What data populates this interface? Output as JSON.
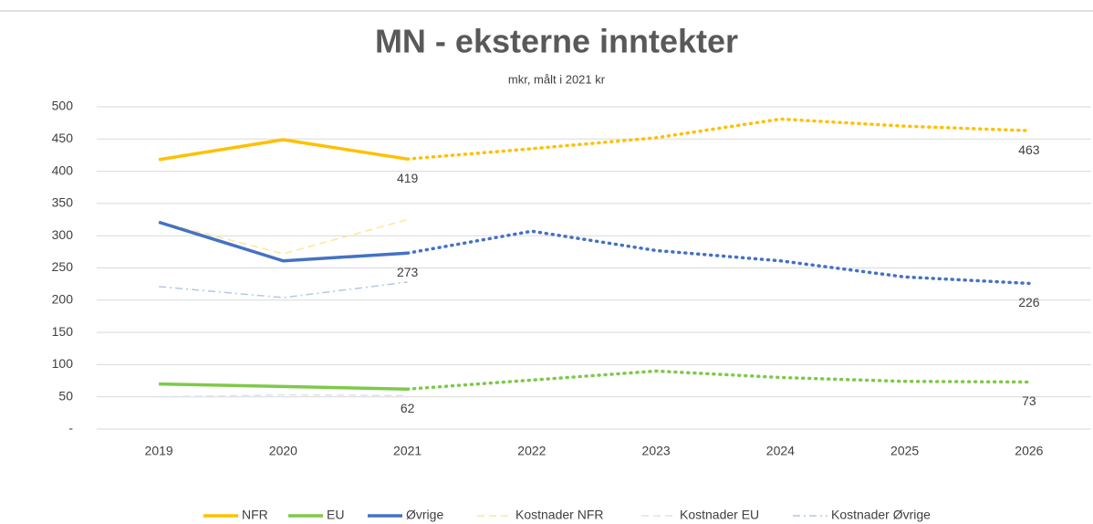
{
  "chart_data": {
    "type": "line",
    "title": "MN - eksterne inntekter",
    "subtitle": "mkr, målt i 2021 kr",
    "categories": [
      "2019",
      "2020",
      "2021",
      "2022",
      "2023",
      "2024",
      "2025",
      "2026"
    ],
    "forecast_from": "2021",
    "series": [
      {
        "name": "NFR",
        "color": "#ffc000",
        "style": "solid",
        "values": [
          418,
          449,
          419,
          435,
          452,
          481,
          470,
          463
        ],
        "value_labels": [
          null,
          null,
          "419",
          null,
          null,
          null,
          null,
          "463"
        ]
      },
      {
        "name": "EU",
        "color": "#7ec94a",
        "style": "solid",
        "values": [
          70,
          66,
          62,
          76,
          90,
          80,
          74,
          73
        ],
        "value_labels": [
          null,
          null,
          "62",
          null,
          null,
          null,
          null,
          "73"
        ]
      },
      {
        "name": "Øvrige",
        "color": "#4472c4",
        "style": "solid",
        "values": [
          321,
          261,
          273,
          307,
          277,
          261,
          236,
          226
        ],
        "value_labels": [
          null,
          null,
          "273",
          null,
          null,
          null,
          null,
          "226"
        ]
      },
      {
        "name": "Kostnader NFR",
        "color": "#ffe699",
        "style": "dashed",
        "values": [
          322,
          272,
          325,
          null,
          null,
          null,
          null,
          null
        ]
      },
      {
        "name": "Kostnader EU",
        "color": "#dae3f3",
        "style": "dashed",
        "values": [
          50,
          53,
          52,
          null,
          null,
          null,
          null,
          null
        ]
      },
      {
        "name": "Kostnader Øvrige",
        "color": "#b4c7e7",
        "style": "dashdot",
        "values": [
          221,
          204,
          228,
          null,
          null,
          null,
          null,
          null
        ]
      }
    ],
    "ylim": [
      0,
      500
    ],
    "yticks": [
      {
        "value": 0,
        "label": "-"
      },
      50,
      100,
      150,
      200,
      250,
      300,
      350,
      400,
      450,
      500
    ],
    "grid": true
  }
}
